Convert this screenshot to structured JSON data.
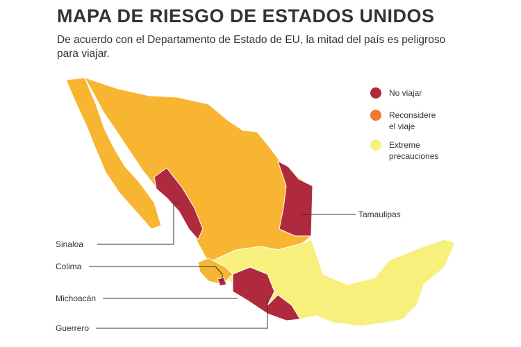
{
  "header": {
    "title": "MAPA DE RIESGO DE ESTADOS UNIDOS",
    "subtitle": "De acuerdo con el Departamento de Estado de EU, la mitad del país es peligroso para viajar."
  },
  "legend": [
    {
      "label": "No viajar",
      "color": "#b02a3e"
    },
    {
      "label": "Reconsidere el viaje",
      "color": "#f2782c"
    },
    {
      "label": "Extreme precauciones",
      "color": "#f8f07c"
    }
  ],
  "map_color": "#f7b531",
  "callouts": [
    {
      "label": "Sinaloa"
    },
    {
      "label": "Colima"
    },
    {
      "label": "Michoacán"
    },
    {
      "label": "Guerrero"
    },
    {
      "label": "Tamaulipas"
    }
  ]
}
